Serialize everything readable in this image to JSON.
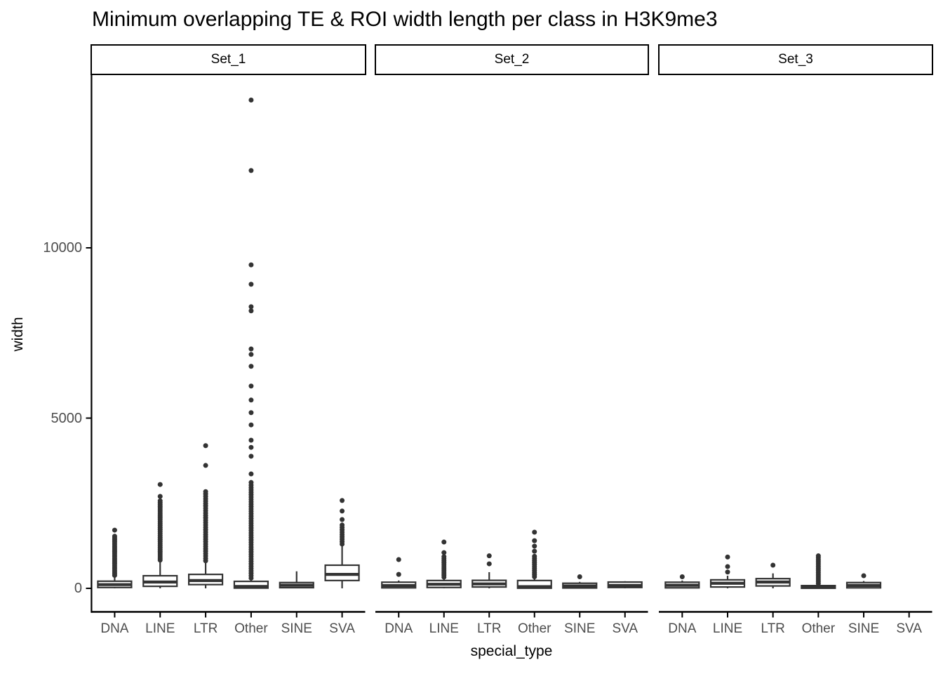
{
  "chart_data": {
    "type": "boxplot",
    "title": "Minimum overlapping TE & ROI width length per class in H3K9me3",
    "xlabel": "special_type",
    "ylabel": "width",
    "categories": [
      "DNA",
      "LINE",
      "LTR",
      "Other",
      "SINE",
      "SVA"
    ],
    "y_ticks": [
      0,
      5000,
      10000
    ],
    "ylim": [
      0,
      15000
    ],
    "grid": "off",
    "colors": {
      "box_stroke": "#333333",
      "box_fill": "#ffffff",
      "axis": "#000000",
      "tick_label": "#4d4d4d",
      "title": "#000000",
      "background": "#ffffff"
    },
    "facets": [
      {
        "label": "Set_1",
        "boxes": [
          {
            "category": "DNA",
            "min": 0,
            "q1": 25,
            "median": 110,
            "q3": 210,
            "whisker_high": 320,
            "outliers": [
              380,
              430,
              480,
              530,
              580,
              630,
              680,
              730,
              780,
              830,
              880,
              930,
              980,
              1030,
              1080,
              1130,
              1180,
              1230,
              1280,
              1330,
              1380,
              1430,
              1480,
              1530,
              1710
            ]
          },
          {
            "category": "LINE",
            "min": 0,
            "q1": 60,
            "median": 185,
            "q3": 370,
            "whisker_high": 780,
            "outliers": [
              830,
              890,
              950,
              1010,
              1070,
              1130,
              1190,
              1250,
              1310,
              1370,
              1430,
              1490,
              1550,
              1610,
              1670,
              1730,
              1790,
              1850,
              1910,
              1970,
              2030,
              2090,
              2150,
              2210,
              2270,
              2330,
              2390,
              2450,
              2510,
              2570,
              2700,
              3050
            ]
          },
          {
            "category": "LTR",
            "min": 0,
            "q1": 110,
            "median": 230,
            "q3": 410,
            "whisker_high": 760,
            "outliers": [
              810,
              880,
              950,
              1020,
              1090,
              1160,
              1230,
              1300,
              1370,
              1440,
              1510,
              1580,
              1650,
              1720,
              1790,
              1860,
              1930,
              2000,
              2070,
              2140,
              2210,
              2280,
              2350,
              2420,
              2490,
              2560,
              2630,
              2700,
              2770,
              2840,
              3610,
              4190
            ]
          },
          {
            "category": "Other",
            "min": 0,
            "q1": 8,
            "median": 55,
            "q3": 205,
            "whisker_high": 255,
            "outliers": [
              300,
              370,
              440,
              510,
              580,
              650,
              720,
              790,
              860,
              930,
              1000,
              1070,
              1140,
              1210,
              1280,
              1350,
              1420,
              1490,
              1560,
              1630,
              1700,
              1770,
              1840,
              1910,
              1980,
              2050,
              2120,
              2190,
              2260,
              2330,
              2400,
              2470,
              2540,
              2610,
              2680,
              2750,
              2820,
              2890,
              2960,
              3030,
              3110,
              3360,
              3880,
              4140,
              4350,
              4800,
              5160,
              5530,
              5940,
              6520,
              6870,
              7030,
              8150,
              8270,
              8930,
              9500,
              12270,
              14340
            ]
          },
          {
            "category": "SINE",
            "min": 0,
            "q1": 20,
            "median": 90,
            "q3": 170,
            "whisker_high": 500,
            "outliers": []
          },
          {
            "category": "SVA",
            "min": 0,
            "q1": 230,
            "median": 410,
            "q3": 680,
            "whisker_high": 1240,
            "outliers": [
              1300,
              1370,
              1440,
              1510,
              1580,
              1650,
              1720,
              1790,
              1860,
              2020,
              2270,
              2580
            ]
          }
        ]
      },
      {
        "label": "Set_2",
        "boxes": [
          {
            "category": "DNA",
            "min": 0,
            "q1": 15,
            "median": 80,
            "q3": 180,
            "whisker_high": 230,
            "outliers": [
              410,
              845
            ]
          },
          {
            "category": "LINE",
            "min": 0,
            "q1": 25,
            "median": 120,
            "q3": 230,
            "whisker_high": 300,
            "outliers": [
              330,
              390,
              450,
              510,
              570,
              630,
              690,
              750,
              810,
              870,
              930,
              1050,
              1360
            ]
          },
          {
            "category": "LTR",
            "min": 0,
            "q1": 40,
            "median": 130,
            "q3": 235,
            "whisker_high": 475,
            "outliers": [
              720,
              955
            ]
          },
          {
            "category": "Other",
            "min": 0,
            "q1": 5,
            "median": 50,
            "q3": 230,
            "whisker_high": 300,
            "outliers": [
              340,
              400,
              460,
              520,
              580,
              640,
              700,
              760,
              820,
              880,
              940,
              1090,
              1240,
              1400,
              1650
            ]
          },
          {
            "category": "SINE",
            "min": 0,
            "q1": 10,
            "median": 70,
            "q3": 150,
            "whisker_high": 190,
            "outliers": [
              340
            ]
          },
          {
            "category": "SVA",
            "min": 0,
            "q1": 25,
            "median": 85,
            "q3": 185,
            "whisker_high": 210,
            "outliers": []
          }
        ]
      },
      {
        "label": "Set_3",
        "boxes": [
          {
            "category": "DNA",
            "min": 0,
            "q1": 15,
            "median": 90,
            "q3": 180,
            "whisker_high": 230,
            "outliers": [
              340
            ]
          },
          {
            "category": "LINE",
            "min": 0,
            "q1": 40,
            "median": 150,
            "q3": 250,
            "whisker_high": 370,
            "outliers": [
              480,
              640,
              920
            ]
          },
          {
            "category": "LTR",
            "min": 0,
            "q1": 70,
            "median": 185,
            "q3": 285,
            "whisker_high": 440,
            "outliers": [
              680
            ]
          },
          {
            "category": "Other",
            "min": 0,
            "q1": 4,
            "median": 30,
            "q3": 80,
            "whisker_high": 110,
            "outliers": [
              140,
              195,
              250,
              305,
              360,
              415,
              470,
              525,
              580,
              635,
              690,
              745,
              800,
              855,
              910,
              955
            ]
          },
          {
            "category": "SINE",
            "min": 0,
            "q1": 15,
            "median": 85,
            "q3": 170,
            "whisker_high": 215,
            "outliers": [
              370
            ]
          },
          {
            "category": "SVA",
            "empty": true
          }
        ]
      }
    ]
  }
}
